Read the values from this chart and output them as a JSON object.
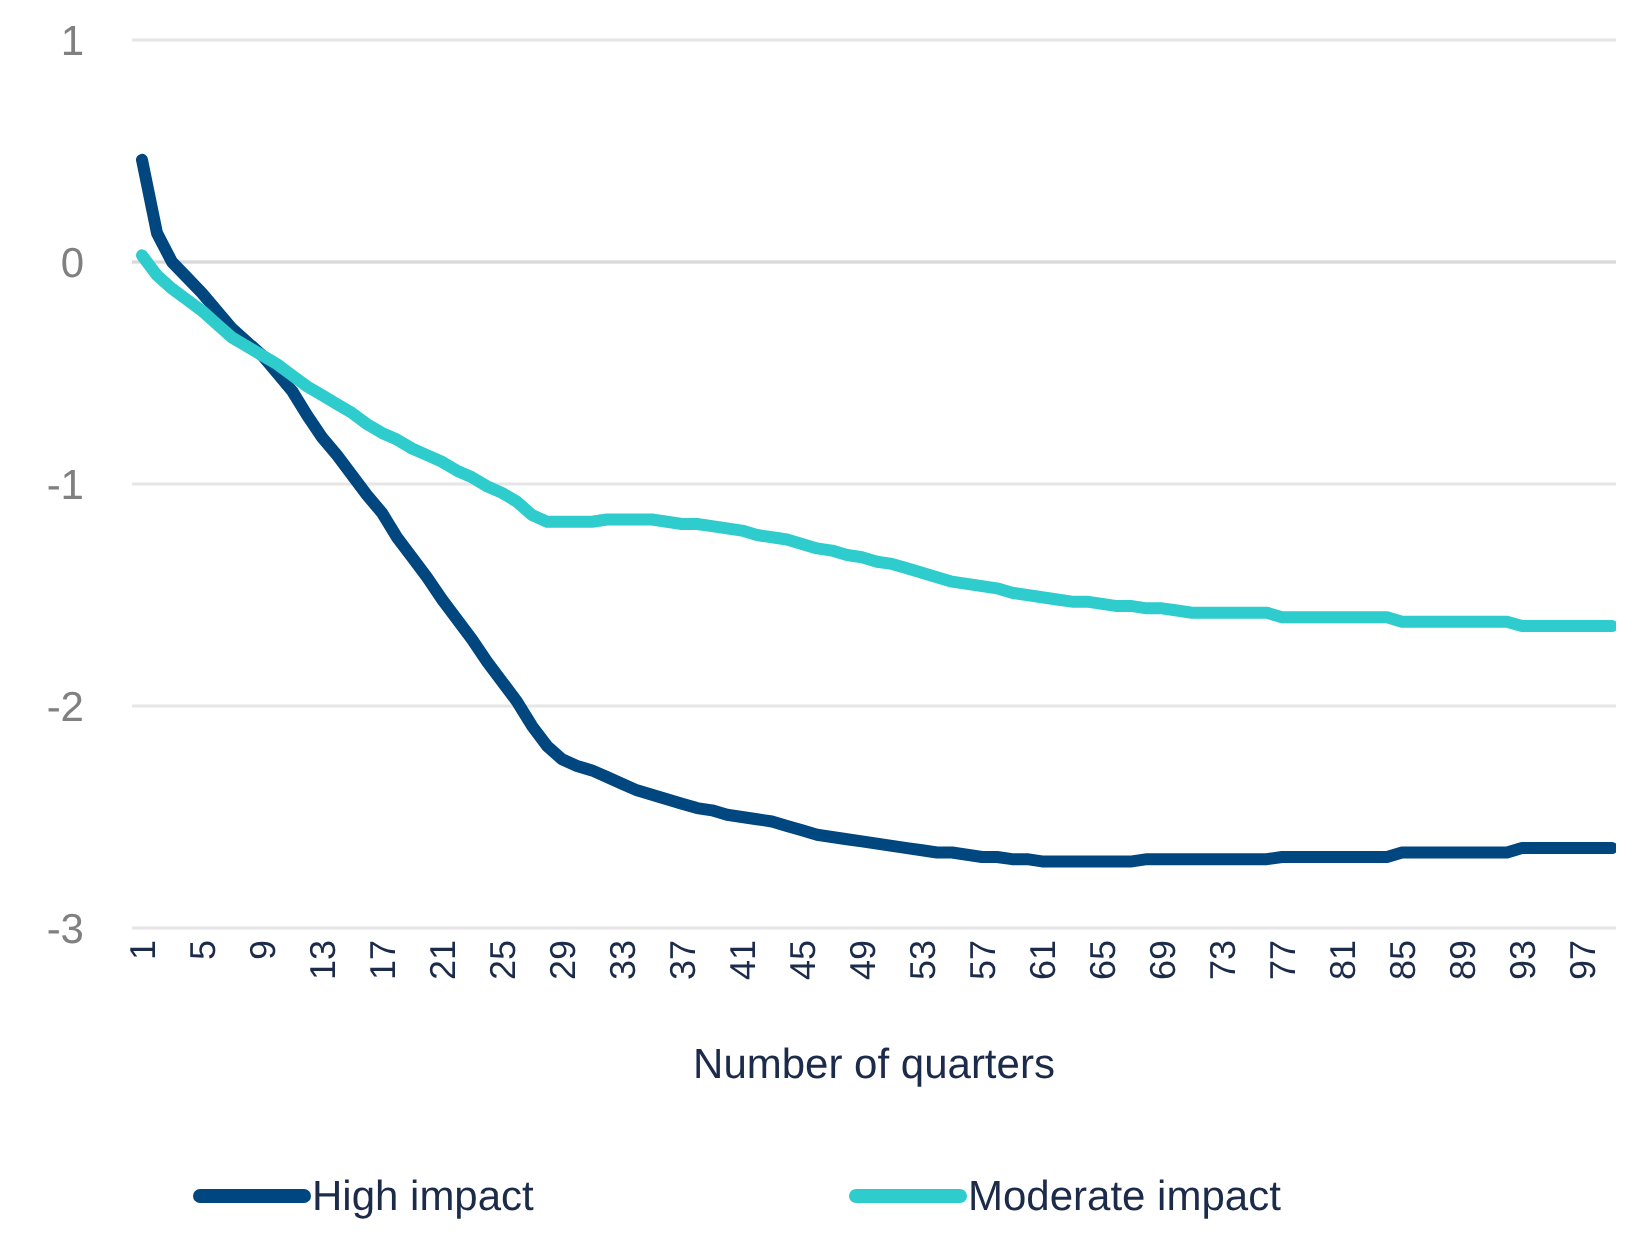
{
  "chart_data": {
    "type": "line",
    "xlabel": "Number of quarters",
    "categories": [
      "1",
      null,
      null,
      null,
      "5",
      null,
      null,
      null,
      "9",
      null,
      null,
      null,
      "13",
      null,
      null,
      null,
      "17",
      null,
      null,
      null,
      "21",
      null,
      null,
      null,
      "25",
      null,
      null,
      null,
      "29",
      null,
      null,
      null,
      "33",
      null,
      null,
      null,
      "37",
      null,
      null,
      null,
      "41",
      null,
      null,
      null,
      "45",
      null,
      null,
      null,
      "49",
      null,
      null,
      null,
      "53",
      null,
      null,
      null,
      "57",
      null,
      null,
      null,
      "61",
      null,
      null,
      null,
      "65",
      null,
      null,
      null,
      "69",
      null,
      null,
      null,
      "73",
      null,
      null,
      null,
      "77",
      null,
      null,
      null,
      "81",
      null,
      null,
      null,
      "85",
      null,
      null,
      null,
      "89",
      null,
      null,
      null,
      "93",
      null,
      null,
      null,
      "97",
      null,
      null
    ],
    "series": [
      {
        "name": "High impact",
        "color": "#00467f",
        "values": [
          0.46,
          0.13,
          0.0,
          -0.07,
          -0.14,
          -0.22,
          -0.3,
          -0.36,
          -0.42,
          -0.5,
          -0.58,
          -0.69,
          -0.79,
          -0.87,
          -0.96,
          -1.05,
          -1.13,
          -1.24,
          -1.33,
          -1.42,
          -1.52,
          -1.61,
          -1.7,
          -1.8,
          -1.89,
          -1.98,
          -2.09,
          -2.18,
          -2.24,
          -2.27,
          -2.29,
          -2.32,
          -2.35,
          -2.38,
          -2.4,
          -2.42,
          -2.44,
          -2.46,
          -2.47,
          -2.49,
          -2.5,
          -2.51,
          -2.52,
          -2.54,
          -2.56,
          -2.58,
          -2.59,
          -2.6,
          -2.61,
          -2.62,
          -2.63,
          -2.64,
          -2.65,
          -2.66,
          -2.66,
          -2.67,
          -2.68,
          -2.68,
          -2.69,
          -2.69,
          -2.7,
          -2.7,
          -2.7,
          -2.7,
          -2.7,
          -2.7,
          -2.7,
          -2.69,
          -2.69,
          -2.69,
          -2.69,
          -2.69,
          -2.69,
          -2.69,
          -2.69,
          -2.69,
          -2.68,
          -2.68,
          -2.68,
          -2.68,
          -2.68,
          -2.68,
          -2.68,
          -2.68,
          -2.66,
          -2.66,
          -2.66,
          -2.66,
          -2.66,
          -2.66,
          -2.66,
          -2.66,
          -2.64,
          -2.64,
          -2.64,
          -2.64,
          -2.64,
          -2.64,
          -2.64
        ]
      },
      {
        "name": "Moderate impact",
        "color": "#2ecccc",
        "values": [
          0.03,
          -0.06,
          -0.12,
          -0.17,
          -0.22,
          -0.28,
          -0.34,
          -0.38,
          -0.42,
          -0.46,
          -0.51,
          -0.56,
          -0.6,
          -0.64,
          -0.68,
          -0.73,
          -0.77,
          -0.8,
          -0.84,
          -0.87,
          -0.9,
          -0.94,
          -0.97,
          -1.01,
          -1.04,
          -1.08,
          -1.14,
          -1.17,
          -1.17,
          -1.17,
          -1.17,
          -1.16,
          -1.16,
          -1.16,
          -1.16,
          -1.17,
          -1.18,
          -1.18,
          -1.19,
          -1.2,
          -1.21,
          -1.23,
          -1.24,
          -1.25,
          -1.27,
          -1.29,
          -1.3,
          -1.32,
          -1.33,
          -1.35,
          -1.36,
          -1.38,
          -1.4,
          -1.42,
          -1.44,
          -1.45,
          -1.46,
          -1.47,
          -1.49,
          -1.5,
          -1.51,
          -1.52,
          -1.53,
          -1.53,
          -1.54,
          -1.55,
          -1.55,
          -1.56,
          -1.56,
          -1.57,
          -1.58,
          -1.58,
          -1.58,
          -1.58,
          -1.58,
          -1.58,
          -1.6,
          -1.6,
          -1.6,
          -1.6,
          -1.6,
          -1.6,
          -1.6,
          -1.6,
          -1.62,
          -1.62,
          -1.62,
          -1.62,
          -1.62,
          -1.62,
          -1.62,
          -1.62,
          -1.64,
          -1.64,
          -1.64,
          -1.64,
          -1.64,
          -1.64,
          -1.64
        ]
      }
    ],
    "ylim": [
      -3,
      1
    ],
    "yticks": [
      -3,
      -2,
      -1,
      0,
      1
    ],
    "grid": "y",
    "legend": "bottom",
    "line_style": "solid",
    "marker": "none"
  }
}
